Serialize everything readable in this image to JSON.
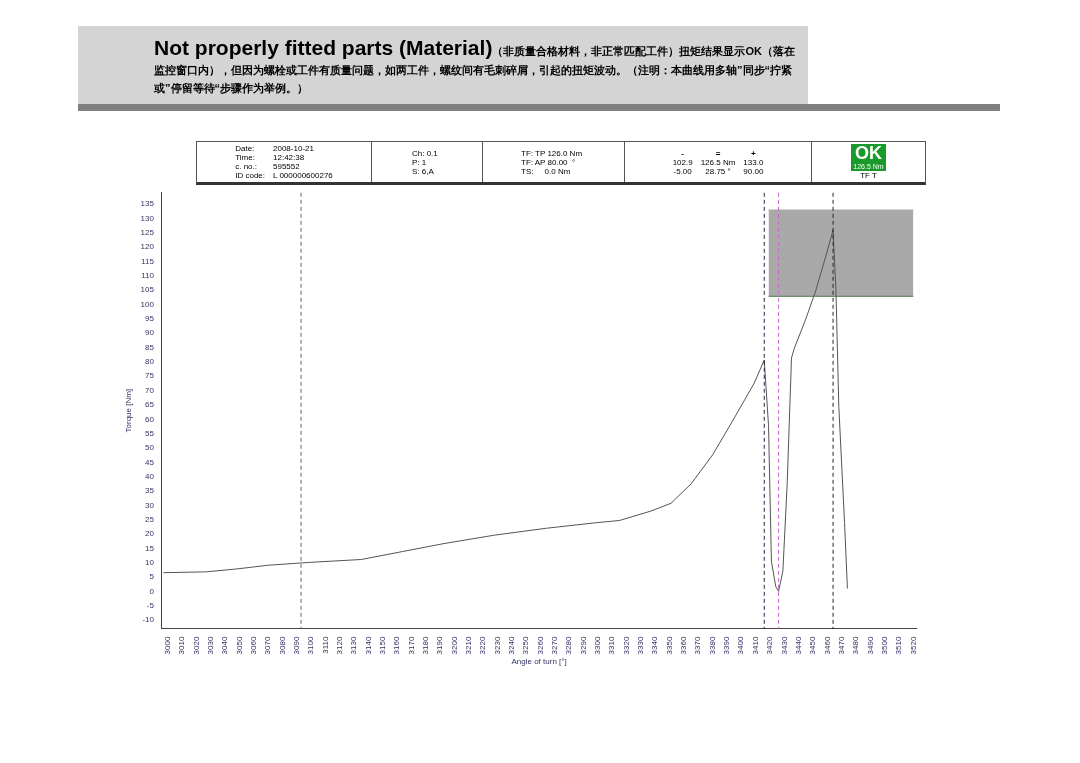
{
  "chart_data": {
    "type": "line",
    "title": "Not properly fitted parts (Material)",
    "subtitle": "（非质量合格材料，非正常匹配工件）扭矩结果显示OK（落在监控窗口内），但因为螺栓或工件有质量问题，如两工件，螺纹间有毛刺碎屑，引起的扭矩波动。（注明：本曲线用多轴”同步“拧紧或”停留等待“步骤作为举例。）",
    "xlabel": "Angle of turn [°]",
    "ylabel": "Torque [Nm]",
    "annotations": [
      "Date:",
      "2008-10-21",
      "Time:",
      "12:42:38",
      "c. no.:",
      "595552",
      "ID code:",
      "L 000000600276",
      "Ch: 0.1",
      "P:  1",
      "S:  6,A",
      "TF: TP 126.0 Nm",
      "TF: AP 80.00  °",
      "TS:     0.0 Nm",
      "-",
      "=",
      "+",
      "102.9",
      "126.5 Nm",
      "133.0",
      "-5.00",
      "28.75 °",
      "90.00",
      "OK",
      "126.5 Nm",
      "TF T"
    ],
    "series": [
      {
        "type": "line",
        "color": "#555555",
        "x": [
          2997,
          3027,
          3048,
          3070,
          3099,
          3135,
          3164,
          3192,
          3228,
          3264,
          3300,
          3315,
          3337,
          3351,
          3365,
          3380,
          3394,
          3409,
          3416,
          3419,
          3421,
          3424,
          3426,
          3429,
          3432,
          3435,
          3437,
          3445,
          3452,
          3459,
          3464,
          3466,
          3468,
          3472,
          3474
        ],
        "values": [
          6.5,
          6.8,
          7.8,
          9.1,
          10.1,
          11.1,
          13.9,
          16.6,
          19.6,
          22,
          24,
          24.7,
          28,
          30.7,
          37.5,
          47.6,
          59.5,
          72.6,
          80.7,
          57.8,
          10.5,
          1.7,
          0,
          7.1,
          37.5,
          81.4,
          84.8,
          95,
          105,
          117,
          126,
          105,
          64.5,
          24,
          1
        ]
      },
      {
        "type": "line",
        "color": "#4a7a4a",
        "x": [
          3419,
          3520
        ],
        "values": [
          102.9,
          102.9
        ]
      },
      {
        "type": "area",
        "color": "#a9a9a9",
        "x": [
          3419,
          3520
        ],
        "values": [
          133,
          133
        ]
      }
    ],
    "ref_lines": [
      {
        "axis": "x",
        "value": 3093,
        "color": "#666666",
        "line_style": "dashed"
      },
      {
        "axis": "x",
        "value": 3416,
        "color": "#222244",
        "line_style": "dashed"
      },
      {
        "axis": "x",
        "value": 3426,
        "color": "#cc66cc",
        "line_style": "dashed"
      },
      {
        "axis": "x",
        "value": 3464,
        "color": "#222244",
        "line_style": "dashed"
      }
    ],
    "xlim": [
      2996,
      3522
    ],
    "xticks": [
      3000,
      3010,
      3020,
      3030,
      3040,
      3050,
      3060,
      3070,
      3080,
      3090,
      3100,
      3110,
      3120,
      3130,
      3140,
      3150,
      3160,
      3170,
      3180,
      3190,
      3200,
      3210,
      3220,
      3230,
      3240,
      3250,
      3260,
      3270,
      3280,
      3290,
      3300,
      3310,
      3320,
      3330,
      3340,
      3350,
      3360,
      3370,
      3380,
      3390,
      3400,
      3410,
      3420,
      3430,
      3440,
      3450,
      3460,
      3470,
      3480,
      3490,
      3500,
      3510,
      3520
    ],
    "ylim": [
      -13,
      139
    ],
    "yticks": [
      -10,
      -5,
      0,
      5,
      10,
      15,
      20,
      25,
      30,
      35,
      40,
      45,
      50,
      55,
      60,
      65,
      70,
      75,
      80,
      85,
      90,
      95,
      100,
      105,
      110,
      115,
      120,
      125,
      130,
      135
    ],
    "grid": false,
    "legend": false
  }
}
